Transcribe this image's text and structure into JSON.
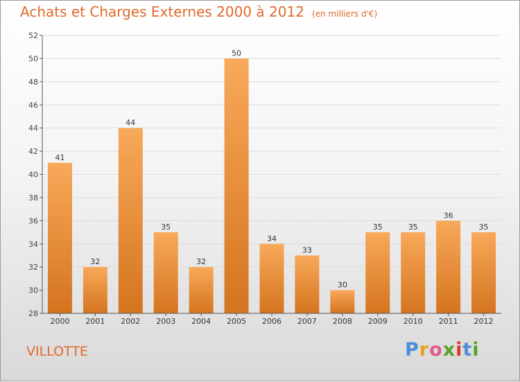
{
  "title": "Achats et Charges Externes 2000 à 2012",
  "unit": "(en milliers d'€)",
  "commune": "VILLOTTE",
  "logo_text": "Proxiti",
  "colors": {
    "title": "#e06a2c",
    "bar_top": "#f8a95a",
    "bar_bottom": "#d4741f",
    "axis": "#555555"
  },
  "chart_data": {
    "type": "bar",
    "categories": [
      "2000",
      "2001",
      "2002",
      "2003",
      "2004",
      "2005",
      "2006",
      "2007",
      "2008",
      "2009",
      "2010",
      "2011",
      "2012"
    ],
    "values": [
      41,
      32,
      44,
      35,
      32,
      50,
      34,
      33,
      30,
      35,
      35,
      36,
      35
    ],
    "ylim": [
      28,
      52
    ],
    "yticks": [
      28,
      30,
      32,
      34,
      36,
      38,
      40,
      42,
      44,
      46,
      48,
      50,
      52
    ],
    "grid": true,
    "legend": "none"
  }
}
